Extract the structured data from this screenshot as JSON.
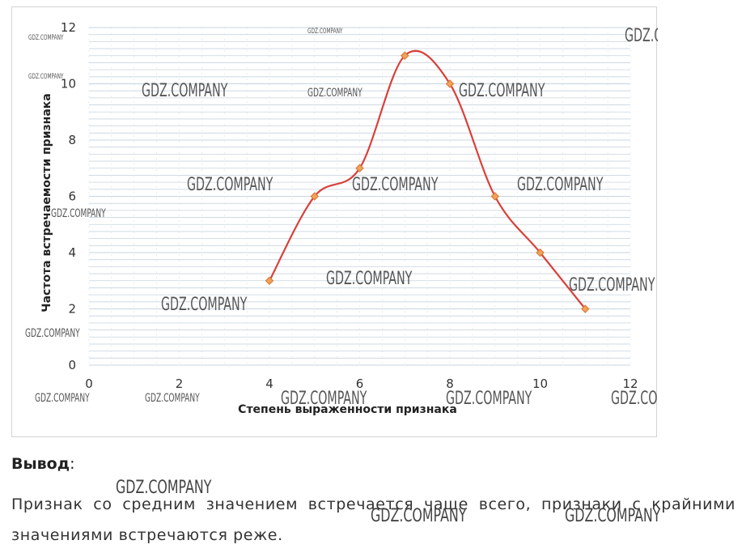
{
  "chart_data": {
    "type": "line",
    "smooth": true,
    "x": [
      4,
      5,
      6,
      7,
      8,
      9,
      10,
      11
    ],
    "series": [
      {
        "values": [
          3,
          6,
          7,
          11,
          10,
          6,
          4,
          2
        ]
      }
    ],
    "xlabel": "Степень выраженности признака",
    "ylabel": "Частота встречаемости признака",
    "xlim": [
      0,
      12
    ],
    "ylim": [
      0,
      12
    ],
    "xticks": [
      "0",
      "2",
      "4",
      "6",
      "8",
      "10",
      "12"
    ],
    "yticks": [
      "0",
      "2",
      "4",
      "6",
      "8",
      "10",
      "12"
    ],
    "grid": true,
    "colors": {
      "line": "#d9403a",
      "marker": "#f0a25a",
      "marker_stroke": "#d9742e",
      "grid": "#c8d4df"
    }
  },
  "watermark": "GDZ.COMPANY",
  "conclusion": {
    "title": "Вывод",
    "colon": ":",
    "text": "Признак со средним значением встречается чаще всего, признаки с крайними значениями встречаются реже."
  }
}
